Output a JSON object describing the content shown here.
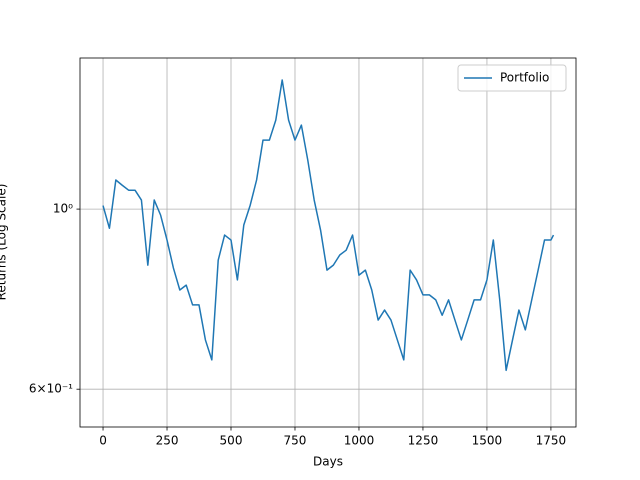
{
  "chart_data": {
    "type": "line",
    "xlabel": "Days",
    "ylabel": "Returns (Log Scale)",
    "x": [
      0,
      25,
      50,
      75,
      100,
      125,
      150,
      175,
      200,
      225,
      250,
      275,
      300,
      325,
      350,
      375,
      400,
      425,
      450,
      475,
      500,
      525,
      550,
      575,
      600,
      625,
      650,
      675,
      700,
      725,
      750,
      775,
      800,
      825,
      850,
      875,
      900,
      925,
      950,
      975,
      1000,
      1025,
      1050,
      1075,
      1100,
      1125,
      1150,
      1175,
      1200,
      1225,
      1250,
      1275,
      1300,
      1325,
      1350,
      1375,
      1400,
      1425,
      1450,
      1475,
      1500,
      1525,
      1550,
      1575,
      1600,
      1625,
      1650,
      1675,
      1700,
      1725,
      1750,
      1760
    ],
    "series": [
      {
        "name": "Portfolio",
        "color": "#1f77b4",
        "values": [
          1.01,
          0.947,
          1.086,
          1.07,
          1.055,
          1.055,
          1.026,
          0.853,
          1.026,
          0.983,
          0.916,
          0.846,
          0.795,
          0.806,
          0.762,
          0.762,
          0.69,
          0.652,
          0.865,
          0.929,
          0.916,
          0.818,
          0.956,
          1.011,
          1.086,
          1.216,
          1.216,
          1.287,
          1.442,
          1.287,
          1.216,
          1.269,
          1.149,
          1.026,
          0.942,
          0.841,
          0.853,
          0.878,
          0.89,
          0.929,
          0.829,
          0.841,
          0.795,
          0.73,
          0.751,
          0.73,
          0.69,
          0.652,
          0.841,
          0.818,
          0.784,
          0.784,
          0.773,
          0.74,
          0.773,
          0.73,
          0.69,
          0.73,
          0.773,
          0.773,
          0.818,
          0.916,
          0.773,
          0.633,
          0.69,
          0.751,
          0.71,
          0.773,
          0.841,
          0.916,
          0.916,
          0.929
        ]
      }
    ],
    "xlim": [
      -90,
      1848
    ],
    "xticks": [
      0,
      250,
      500,
      750,
      1000,
      1250,
      1500,
      1750
    ],
    "ylim": [
      0.539,
      1.535
    ],
    "yticks": [
      {
        "value": 0.6,
        "label": "6×10⁻¹"
      },
      {
        "value": 1,
        "label": "10⁰"
      }
    ],
    "log_y": true,
    "grid": true,
    "legend": "upper-right"
  }
}
